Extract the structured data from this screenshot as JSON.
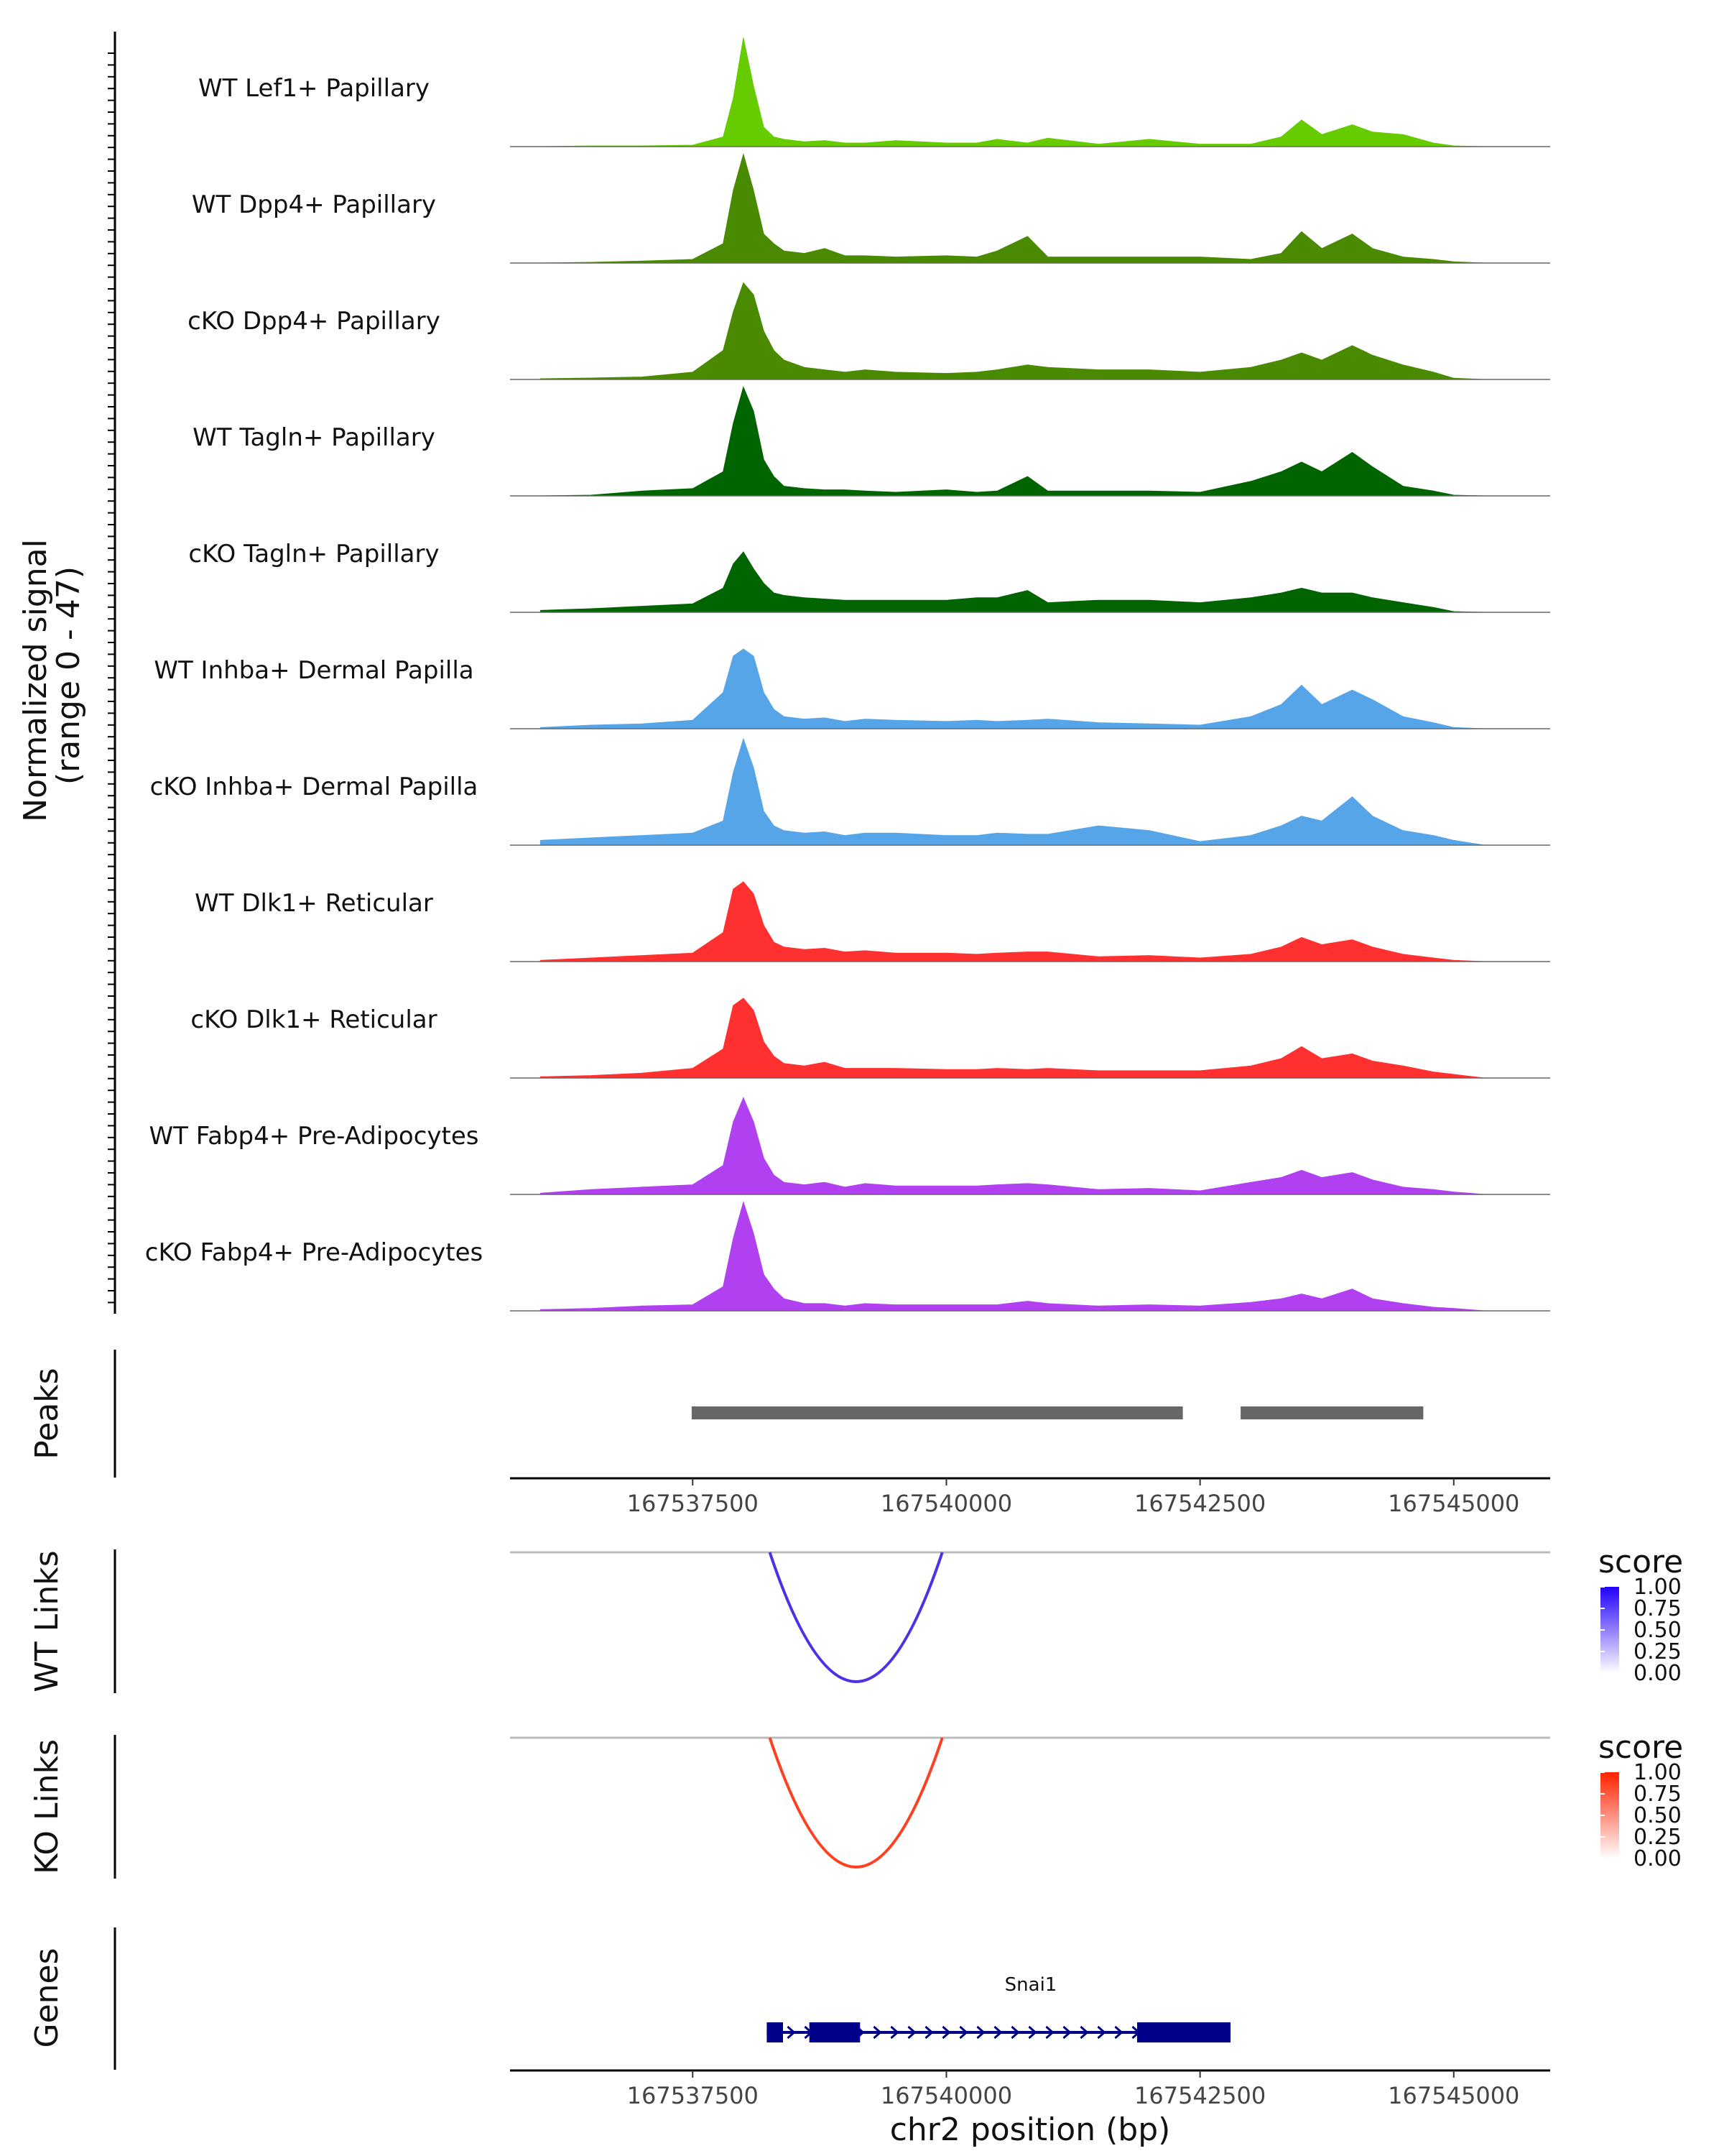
{
  "chart_data": {
    "type": "area",
    "genome": "chr2",
    "xlim": [
      167535700,
      167545950
    ],
    "x_ticks": [
      167537500,
      167540000,
      167542500,
      167545000
    ],
    "x_tick_labels": [
      "167537500",
      "167540000",
      "167542500",
      "167545000"
    ],
    "xlabel": "chr2 position (bp)",
    "coverage": {
      "ylabel_line1": "Normalized signal",
      "ylabel_line2": "(range 0 - 47)",
      "ylim": [
        0,
        47
      ],
      "x": [
        167536000,
        167536500,
        167537000,
        167537500,
        167537800,
        167537900,
        167538000,
        167538100,
        167538200,
        167538300,
        167538400,
        167538600,
        167538800,
        167539000,
        167539200,
        167539500,
        167540000,
        167540300,
        167540500,
        167540800,
        167541000,
        167541500,
        167542000,
        167542500,
        167543000,
        167543300,
        167543500,
        167543700,
        167544000,
        167544200,
        167544500,
        167544800,
        167545000,
        167545300
      ],
      "series": [
        {
          "name": "WT Lef1+ Papillary",
          "color": "#66CC00",
          "values": [
            0,
            0.3,
            0.3,
            0.6,
            4,
            20,
            45,
            25,
            8,
            4,
            3,
            2,
            2.5,
            1.5,
            1.5,
            2.5,
            1.5,
            1.5,
            3,
            1.5,
            3.5,
            1,
            3,
            1,
            1,
            4,
            11,
            5,
            9,
            6,
            5,
            1.5,
            0.3,
            0
          ]
        },
        {
          "name": "WT Dpp4+ Papillary",
          "color": "#4A8A00",
          "values": [
            0,
            0.3,
            0.8,
            1.5,
            8,
            30,
            45,
            30,
            12,
            8,
            5,
            4,
            6,
            3,
            3,
            2.5,
            3,
            2.5,
            5,
            11,
            2.5,
            2.5,
            2.5,
            2.5,
            1.5,
            4,
            13,
            6,
            12,
            6,
            2.5,
            1.5,
            0.5,
            0
          ]
        },
        {
          "name": "cKO Dpp4+ Papillary",
          "color": "#4A8A00",
          "values": [
            0.3,
            0.6,
            1,
            3,
            12,
            28,
            40,
            35,
            20,
            12,
            8,
            5,
            4,
            3,
            4,
            3,
            2.5,
            3,
            4,
            6,
            5,
            4,
            4,
            3,
            5,
            8,
            11,
            8,
            14,
            10,
            6,
            3,
            0.5,
            0
          ]
        },
        {
          "name": "WT Tagln+ Papillary",
          "color": "#006400",
          "values": [
            0,
            0.3,
            2,
            3,
            10,
            30,
            45,
            35,
            15,
            8,
            4,
            3,
            2.5,
            2.5,
            2,
            1.5,
            2.5,
            1.5,
            2,
            8,
            2,
            2,
            2,
            1.5,
            6,
            10,
            14,
            10,
            18,
            12,
            4,
            2,
            0.3,
            0
          ]
        },
        {
          "name": "cKO Tagln+ Papillary",
          "color": "#006400",
          "values": [
            0.8,
            1.5,
            2.5,
            3.5,
            10,
            20,
            25,
            18,
            12,
            8,
            7,
            6,
            5.5,
            5,
            5,
            5,
            5,
            6,
            6,
            9,
            4,
            5,
            5,
            4,
            6,
            8,
            10,
            8,
            8,
            6,
            4,
            2,
            0.3,
            0
          ]
        },
        {
          "name": "WT Inhba+ Dermal Papilla",
          "color": "#56A5E8",
          "values": [
            0.5,
            1.5,
            2,
            3.5,
            15,
            30,
            33,
            30,
            15,
            8,
            5,
            4,
            4.5,
            3,
            4,
            3.5,
            3,
            3.5,
            3,
            3.5,
            4,
            2.5,
            2,
            1.5,
            5,
            10,
            18,
            10,
            16,
            12,
            5,
            2.5,
            0.5,
            0
          ]
        },
        {
          "name": "cKO Inhba+ Dermal Papilla",
          "color": "#56A5E8",
          "values": [
            2,
            3,
            4,
            5,
            10,
            30,
            44,
            32,
            14,
            8,
            6,
            5,
            5.5,
            4,
            5,
            5,
            4,
            4,
            5,
            4.5,
            4.5,
            8,
            6,
            1.5,
            4,
            8,
            12,
            10,
            20,
            12,
            6,
            4,
            2,
            0
          ]
        },
        {
          "name": "WT Dlk1+ Reticular",
          "color": "#FF3030",
          "values": [
            0.5,
            1.5,
            2.5,
            3.5,
            12,
            30,
            33,
            28,
            15,
            8,
            6,
            5,
            5.5,
            4,
            4.5,
            3.5,
            3.5,
            3,
            3.5,
            4,
            4,
            2,
            2.5,
            1.5,
            3,
            6,
            10,
            7,
            9,
            6,
            3,
            1.5,
            0.5,
            0
          ]
        },
        {
          "name": "cKO Dlk1+ Reticular",
          "color": "#FF3030",
          "values": [
            0.5,
            1,
            2,
            4,
            12,
            30,
            33,
            28,
            15,
            9,
            6,
            5,
            6.5,
            4,
            4,
            4,
            3.5,
            3.5,
            4,
            3.5,
            4,
            3,
            3,
            3,
            5,
            8,
            13,
            8,
            10,
            7,
            5,
            2.5,
            1.5,
            0
          ]
        },
        {
          "name": "WT Fabp4+ Pre-Adipocytes",
          "color": "#B040F0",
          "values": [
            0.5,
            2,
            3,
            4,
            12,
            30,
            40,
            30,
            15,
            8,
            5,
            4,
            5,
            3,
            4.5,
            3.5,
            3.5,
            3.5,
            4,
            4.5,
            4,
            2,
            2.5,
            1.5,
            5,
            7,
            10,
            7,
            9,
            6,
            3,
            2,
            1,
            0
          ]
        },
        {
          "name": "cKO Fabp4+ Pre-Adipocytes",
          "color": "#B040F0",
          "values": [
            0.5,
            1,
            2,
            2.5,
            10,
            30,
            45,
            32,
            15,
            9,
            5,
            3,
            3,
            2,
            3,
            2.5,
            2.5,
            2.5,
            2.5,
            4,
            3,
            2,
            2.5,
            2,
            3.5,
            5,
            7,
            5,
            9,
            5,
            3,
            1.5,
            1,
            0
          ]
        }
      ]
    },
    "peaks": {
      "ylabel": "Peaks",
      "color": "#666666",
      "regions": [
        [
          167537490,
          167542330
        ],
        [
          167542900,
          167544700
        ]
      ]
    },
    "links": [
      {
        "ylabel": "WT Links",
        "start": 167538260,
        "end": 167539960,
        "score": 0.9,
        "color": "#5030E6",
        "legend_title": "score",
        "legend_colors": [
          "#FFFFFF",
          "#2200FF"
        ],
        "legend_labels": [
          "1.00",
          "0.75",
          "0.50",
          "0.25",
          "0.00"
        ]
      },
      {
        "ylabel": "KO Links",
        "start": 167538260,
        "end": 167539960,
        "score": 0.85,
        "color": "#FF4020",
        "legend_title": "score",
        "legend_colors": [
          "#FFFFFF",
          "#FF2200"
        ],
        "legend_labels": [
          "1.00",
          "0.75",
          "0.50",
          "0.25",
          "0.00"
        ]
      }
    ],
    "genes": {
      "ylabel": "Genes",
      "color": "#00008B",
      "name": "Snai1",
      "start": 167538230,
      "end": 167542800,
      "exons": [
        [
          167538230,
          167538390
        ],
        [
          167538650,
          167539150
        ],
        [
          167541880,
          167542800
        ]
      ]
    }
  }
}
